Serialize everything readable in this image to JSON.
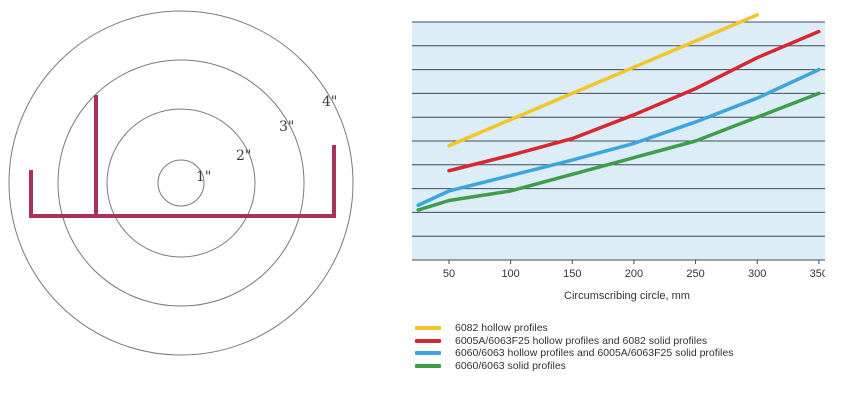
{
  "circle_diagram": {
    "ring_labels": [
      "1\"",
      "2\"",
      "3\"",
      "4\""
    ],
    "profile_color": "#a8335a",
    "ring_color": "#7a7a7a"
  },
  "chart_data": {
    "type": "line",
    "title": "",
    "xlabel": "Circumscribing circle, mm",
    "ylabel": "",
    "xlim": [
      20,
      355
    ],
    "ylim": [
      0,
      10
    ],
    "xticks": [
      50,
      100,
      150,
      200,
      250,
      300,
      350
    ],
    "xtick_labels": [
      "50",
      "100",
      "150",
      "200",
      "250",
      "300",
      "350"
    ],
    "grid": true,
    "plot_background": "#dcedf7",
    "series": [
      {
        "name": "6082 hollow profiles",
        "color": "#f3c52b",
        "x": [
          50,
          100,
          150,
          200,
          250,
          300
        ],
        "y": [
          4.8,
          5.9,
          7.0,
          8.1,
          9.2,
          10.3
        ]
      },
      {
        "name": "6005A/6063F25 hollow profiles and 6082 solid profiles",
        "color": "#d8272f",
        "x": [
          50,
          100,
          150,
          200,
          250,
          300,
          350
        ],
        "y": [
          3.75,
          4.4,
          5.1,
          6.1,
          7.2,
          8.5,
          9.6
        ]
      },
      {
        "name": "6060/6063 hollow profiles and 6005A/6063F25 solid profiles",
        "color": "#3aa6dd",
        "x": [
          25,
          50,
          100,
          150,
          200,
          250,
          300,
          350
        ],
        "y": [
          2.3,
          2.9,
          3.55,
          4.2,
          4.9,
          5.8,
          6.8,
          8.0
        ]
      },
      {
        "name": "6060/6063 solid profiles",
        "color": "#3f9d4a",
        "x": [
          25,
          50,
          100,
          150,
          200,
          250,
          300,
          350
        ],
        "y": [
          2.1,
          2.5,
          2.9,
          3.6,
          4.3,
          5.0,
          6.0,
          7.0
        ]
      }
    ]
  }
}
